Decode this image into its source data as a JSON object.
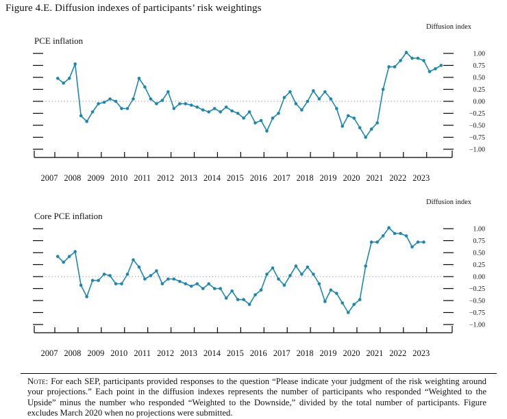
{
  "figure_title": "Figure 4.E. Diffusion indexes of participants’ risk weightings",
  "note": {
    "label": "Note:",
    "text": "For each SEP, participants provided responses to the question “Please indicate your judgment of the risk weighting around your projections.” Each point in the diffusion indexes represents the number of participants who responded “Weighted to the Upside” minus the number who responded “Weighted to the Downside,” divided by the total number of participants. Figure excludes March 2020 when no projections were submitted."
  },
  "colors": {
    "line": "#1b87b0",
    "axis": "#000000",
    "zero": "#999999"
  },
  "chart_data": [
    {
      "type": "line",
      "title": "PCE inflation",
      "ylabel": "Diffusion index",
      "ylim": [
        -1.0,
        1.0
      ],
      "yticks": [
        "1.00",
        "0.75",
        "0.50",
        "0.25",
        "0.00",
        "−0.25",
        "−0.50",
        "−0.75",
        "−1.00"
      ],
      "yticks_values": [
        1.0,
        0.75,
        0.5,
        0.25,
        0.0,
        -0.25,
        -0.5,
        -0.75,
        -1.0
      ],
      "xlabels": [
        "2007",
        "2008",
        "2009",
        "2010",
        "2011",
        "2012",
        "2013",
        "2014",
        "2015",
        "2016",
        "2017",
        "2018",
        "2019",
        "2020",
        "2021",
        "2022",
        "2023"
      ],
      "x_start_year": 2007,
      "points_per_year": 4,
      "series": [
        {
          "name": "PCE inflation",
          "values": [
            0.48,
            0.38,
            0.48,
            0.78,
            -0.3,
            -0.42,
            -0.22,
            -0.05,
            -0.02,
            0.05,
            0.0,
            -0.15,
            -0.15,
            0.05,
            0.48,
            0.3,
            0.05,
            -0.05,
            0.02,
            0.2,
            -0.15,
            -0.05,
            -0.05,
            -0.08,
            -0.12,
            -0.18,
            -0.22,
            -0.15,
            -0.22,
            -0.12,
            -0.2,
            -0.25,
            -0.35,
            -0.22,
            -0.45,
            -0.4,
            -0.62,
            -0.35,
            -0.25,
            0.08,
            0.2,
            -0.05,
            -0.18,
            0.0,
            0.22,
            0.05,
            0.2,
            0.05,
            -0.15,
            -0.52,
            -0.3,
            -0.35,
            -0.55,
            -0.75,
            -0.58,
            -0.45,
            0.25,
            0.72,
            0.72,
            0.85,
            1.02,
            0.9,
            0.9,
            0.85,
            0.62,
            0.68,
            0.75
          ]
        }
      ]
    },
    {
      "type": "line",
      "title": "Core PCE inflation",
      "ylabel": "Diffusion index",
      "ylim": [
        -1.0,
        1.0
      ],
      "yticks": [
        "1.00",
        "0.75",
        "0.50",
        "0.25",
        "0.00",
        "−0.25",
        "−0.50",
        "−0.75",
        "−1.00"
      ],
      "yticks_values": [
        1.0,
        0.75,
        0.5,
        0.25,
        0.0,
        -0.25,
        -0.5,
        -0.75,
        -1.0
      ],
      "xlabels": [
        "2007",
        "2008",
        "2009",
        "2010",
        "2011",
        "2012",
        "2013",
        "2014",
        "2015",
        "2016",
        "2017",
        "2018",
        "2019",
        "2020",
        "2021",
        "2022",
        "2023"
      ],
      "x_start_year": 2007,
      "points_per_year": 4,
      "series": [
        {
          "name": "Core PCE inflation",
          "values": [
            0.42,
            0.3,
            0.42,
            0.52,
            -0.18,
            -0.42,
            -0.08,
            -0.08,
            0.05,
            0.02,
            -0.15,
            -0.15,
            0.05,
            0.35,
            0.2,
            -0.05,
            0.02,
            0.12,
            -0.15,
            -0.05,
            -0.05,
            -0.1,
            -0.15,
            -0.2,
            -0.15,
            -0.25,
            -0.15,
            -0.25,
            -0.25,
            -0.45,
            -0.3,
            -0.48,
            -0.48,
            -0.58,
            -0.38,
            -0.28,
            0.05,
            0.18,
            -0.05,
            -0.18,
            0.02,
            0.22,
            0.05,
            0.2,
            0.05,
            -0.15,
            -0.52,
            -0.28,
            -0.35,
            -0.55,
            -0.75,
            -0.58,
            -0.48,
            0.22,
            0.72,
            0.72,
            0.85,
            1.02,
            0.9,
            0.9,
            0.85,
            0.62,
            0.72,
            0.72
          ]
        }
      ]
    }
  ]
}
